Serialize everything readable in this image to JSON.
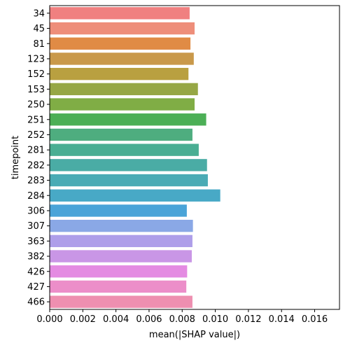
{
  "chart_data": {
    "type": "bar",
    "orientation": "horizontal",
    "xlabel": "mean(|SHAP value|)",
    "ylabel": "timepoint",
    "xlim": [
      0,
      0.0175
    ],
    "xticks": [
      0.0,
      0.002,
      0.004,
      0.006,
      0.008,
      0.01,
      0.012,
      0.014,
      0.016
    ],
    "xtick_labels": [
      "0.000",
      "0.002",
      "0.004",
      "0.006",
      "0.008",
      "0.010",
      "0.012",
      "0.014",
      "0.016"
    ],
    "grid": false,
    "categories": [
      "34",
      "45",
      "81",
      "123",
      "152",
      "153",
      "250",
      "251",
      "252",
      "281",
      "282",
      "283",
      "284",
      "306",
      "307",
      "363",
      "382",
      "426",
      "427",
      "466"
    ],
    "values": [
      0.00845,
      0.00875,
      0.0085,
      0.0087,
      0.00838,
      0.00895,
      0.00875,
      0.00945,
      0.00862,
      0.009,
      0.0095,
      0.00955,
      0.0103,
      0.00828,
      0.00865,
      0.00862,
      0.00858,
      0.0083,
      0.00825,
      0.00862
    ],
    "colors": [
      "#f08080",
      "#ee8e7a",
      "#e08b45",
      "#c9994a",
      "#b9a040",
      "#96a745",
      "#80ad45",
      "#4caf56",
      "#4ead7f",
      "#4aae93",
      "#4aaca5",
      "#4aabb5",
      "#48a9c6",
      "#4aa4d8",
      "#8aa8e6",
      "#ae9ee9",
      "#c996e6",
      "#e48be2",
      "#ec8ec9",
      "#ee8fb0"
    ]
  }
}
